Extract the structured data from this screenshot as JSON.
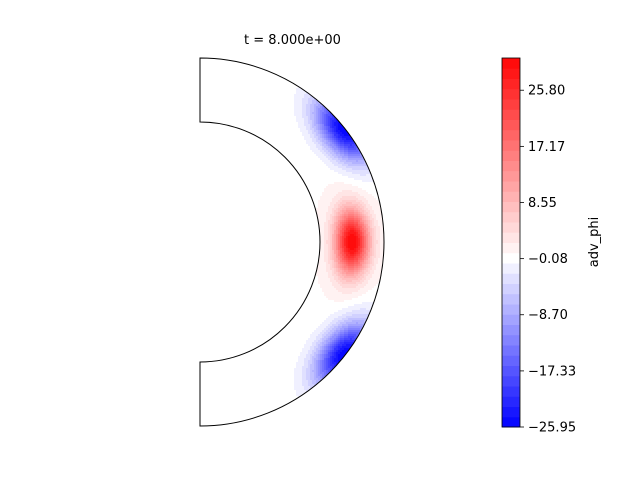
{
  "chart_data": {
    "type": "contour",
    "title": "t = 8.000e+00",
    "domain": "meridional half-annulus (spherical shell cross-section)",
    "field": "adv_phi",
    "colormap": "bwr",
    "levels": [
      -25.95,
      -24.38,
      -22.8,
      -21.23,
      -19.65,
      -18.08,
      -16.5,
      -14.92,
      -13.35,
      -11.77,
      -10.2,
      -8.62,
      -7.05,
      -5.47,
      -3.9,
      -2.32,
      -0.75,
      0.83,
      2.4,
      3.98,
      5.55,
      7.13,
      8.7,
      10.28,
      11.85,
      13.43,
      15.0,
      16.58,
      18.15,
      19.73,
      21.3,
      22.88,
      24.45,
      26.03,
      27.6,
      29.18,
      30.75
    ],
    "colorbar": {
      "label": "adv_phi",
      "ticks": [
        "25.80",
        "17.17",
        "8.55",
        "−0.08",
        "−8.70",
        "−17.33",
        "−25.95"
      ],
      "tick_values": [
        25.8,
        17.17,
        8.55,
        -0.08,
        -8.7,
        -17.33,
        -25.95
      ],
      "range": [
        -25.95,
        31.4
      ]
    },
    "features": [
      {
        "kind": "maximum",
        "value": 30.5,
        "location": "equator, mid-shell"
      },
      {
        "kind": "minimum",
        "value": -25.9,
        "location": "outer boundary, ~35° north of equator"
      },
      {
        "kind": "minimum",
        "value": -25.9,
        "location": "outer boundary, ~35° south of equator"
      },
      {
        "kind": "background",
        "value": 0.8,
        "location": "near poles"
      }
    ]
  }
}
